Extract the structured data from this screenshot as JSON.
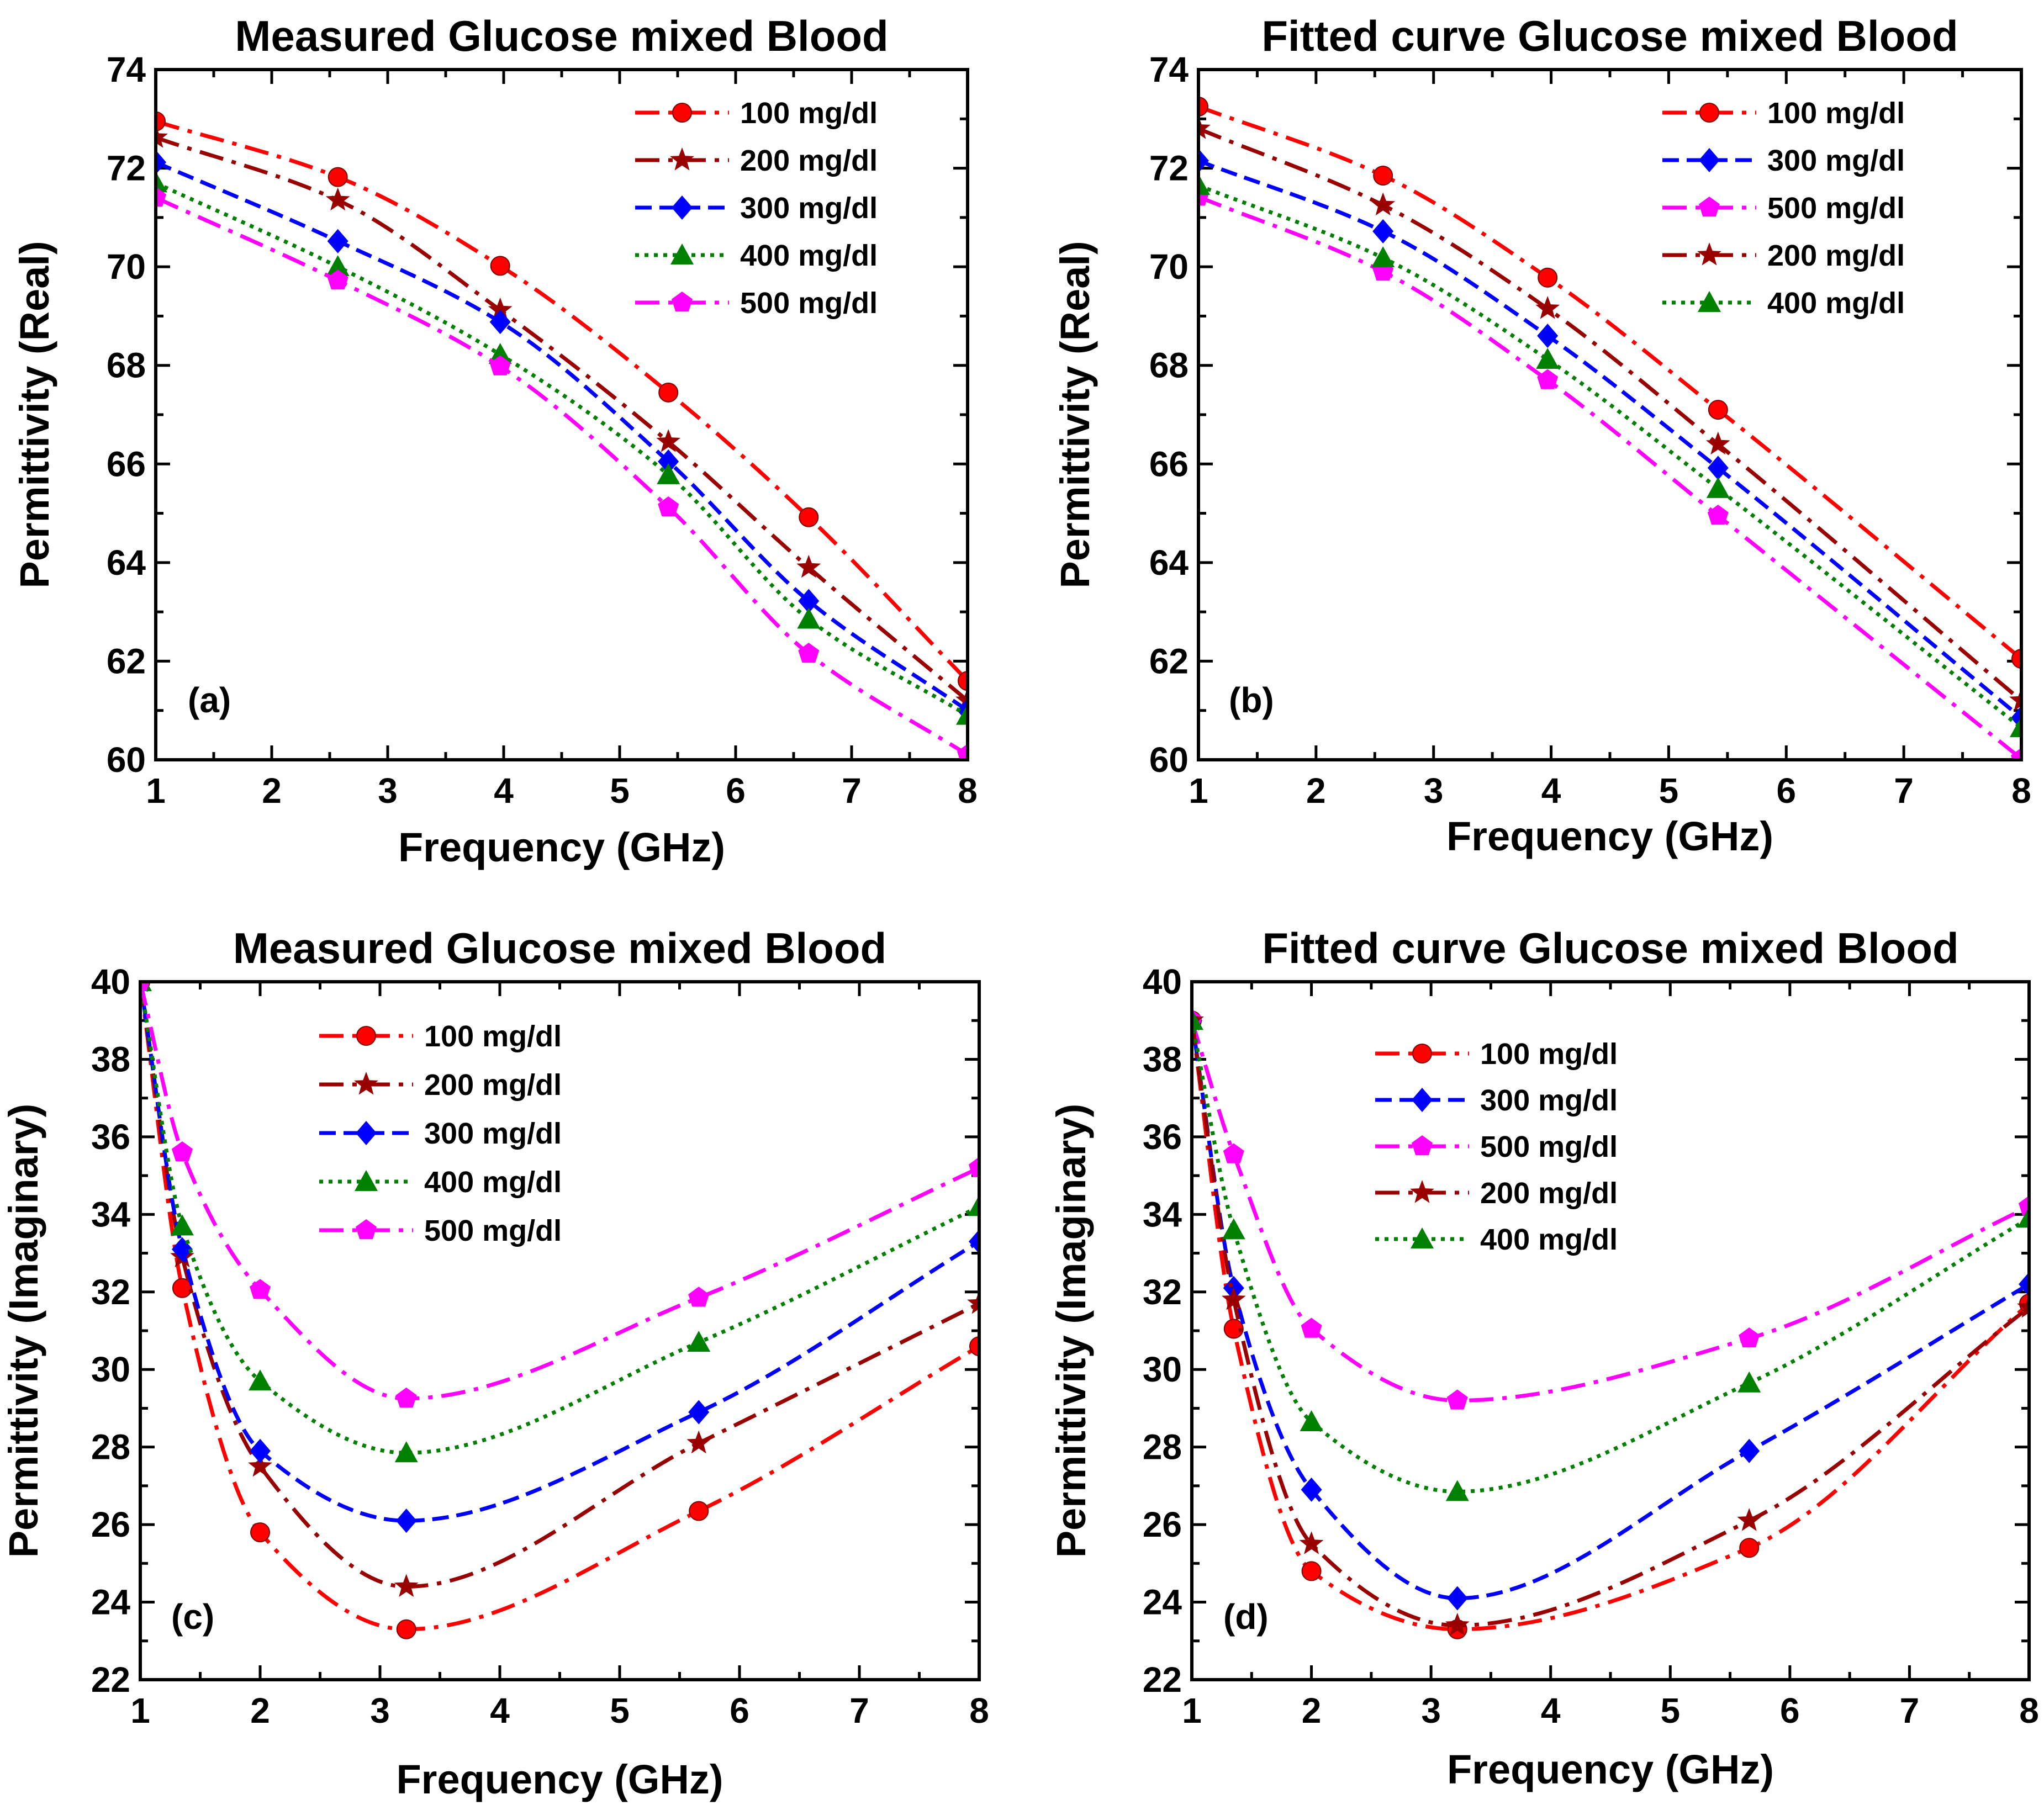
{
  "colors": {
    "100 mg/dl": "#ff0000",
    "200 mg/dl": "#990000",
    "300 mg/dl": "#0000ff",
    "400 mg/dl": "#008000",
    "500 mg/dl": "#ff00ff"
  },
  "chart_data": [
    {
      "type": "line",
      "tag": "(a)",
      "title": "Measured Glucose mixed Blood",
      "xlabel": "Frequency (GHz)",
      "ylabel": "Permittivity (Real)",
      "xlim": [
        1,
        8
      ],
      "ylim": [
        60,
        74
      ],
      "xticks": [
        1,
        2,
        3,
        4,
        5,
        6,
        7,
        8
      ],
      "yticks": [
        60,
        62,
        64,
        66,
        68,
        70,
        72,
        74
      ],
      "legend_position": "top-right",
      "grid": false,
      "series": [
        {
          "name": "100 mg/dl",
          "style": "dashdot",
          "marker": "circle",
          "x": [
            1.0,
            2.57,
            3.97,
            5.42,
            6.63,
            8.0
          ],
          "y": [
            72.95,
            71.82,
            70.02,
            67.45,
            64.92,
            61.6
          ]
        },
        {
          "name": "200 mg/dl",
          "style": "dashdot",
          "marker": "star",
          "x": [
            1.0,
            2.57,
            3.97,
            5.42,
            6.63,
            8.0
          ],
          "y": [
            72.62,
            71.35,
            69.12,
            66.45,
            63.9,
            61.2
          ]
        },
        {
          "name": "300 mg/dl",
          "style": "dash",
          "marker": "diamond",
          "x": [
            1.0,
            2.57,
            3.97,
            5.42,
            6.63,
            8.0
          ],
          "y": [
            72.12,
            70.52,
            68.88,
            66.05,
            63.22,
            61.0
          ]
        },
        {
          "name": "400 mg/dl",
          "style": "dot",
          "marker": "triangle",
          "x": [
            1.0,
            2.57,
            3.97,
            5.42,
            6.63,
            8.0
          ],
          "y": [
            71.7,
            70.0,
            68.22,
            65.78,
            62.85,
            60.9
          ]
        },
        {
          "name": "500 mg/dl",
          "style": "dashdot",
          "marker": "pentagon",
          "x": [
            1.0,
            2.57,
            3.97,
            5.42,
            6.63,
            8.0
          ],
          "y": [
            71.4,
            69.72,
            67.98,
            65.12,
            62.15,
            60.1
          ]
        }
      ]
    },
    {
      "type": "line",
      "tag": "(b)",
      "title": "Fitted curve Glucose mixed Blood",
      "xlabel": "Frequency (GHz)",
      "ylabel": "Permittivity (Real)",
      "xlim": [
        1,
        8
      ],
      "ylim": [
        60,
        74
      ],
      "xticks": [
        1,
        2,
        3,
        4,
        5,
        6,
        7,
        8
      ],
      "yticks": [
        60,
        62,
        64,
        66,
        68,
        70,
        72,
        74
      ],
      "legend_position": "top-right",
      "grid": false,
      "series": [
        {
          "name": "100 mg/dl",
          "style": "dashdot",
          "marker": "circle",
          "x": [
            1.0,
            2.57,
            3.97,
            5.42,
            8.0
          ],
          "y": [
            73.25,
            71.85,
            69.78,
            67.1,
            62.05
          ]
        },
        {
          "name": "300 mg/dl",
          "style": "dash",
          "marker": "diamond",
          "x": [
            1.0,
            2.57,
            3.97,
            5.42,
            8.0
          ],
          "y": [
            72.15,
            70.72,
            68.6,
            65.92,
            60.85
          ]
        },
        {
          "name": "500 mg/dl",
          "style": "dashdot",
          "marker": "pentagon",
          "x": [
            1.0,
            2.57,
            3.97,
            5.42,
            8.0
          ],
          "y": [
            71.42,
            69.9,
            67.7,
            64.95,
            60.02
          ]
        },
        {
          "name": "200 mg/dl",
          "style": "dashdot",
          "marker": "star",
          "x": [
            1.0,
            2.57,
            3.97,
            5.42,
            8.0
          ],
          "y": [
            72.8,
            71.25,
            69.15,
            66.4,
            61.2
          ]
        },
        {
          "name": "400 mg/dl",
          "style": "dot",
          "marker": "triangle",
          "x": [
            1.0,
            2.57,
            3.97,
            5.42,
            8.0
          ],
          "y": [
            71.65,
            70.18,
            68.12,
            65.5,
            60.65
          ]
        }
      ]
    },
    {
      "type": "line",
      "tag": "(c)",
      "title": "Measured Glucose mixed Blood",
      "xlabel": "Frequency (GHz)",
      "ylabel": "Permittivity (Imaginary)",
      "xlim": [
        1,
        8
      ],
      "ylim": [
        22,
        40
      ],
      "xticks": [
        1,
        2,
        3,
        4,
        5,
        6,
        7,
        8
      ],
      "yticks": [
        22,
        24,
        26,
        28,
        30,
        32,
        34,
        36,
        38,
        40
      ],
      "legend_position": "top-left",
      "grid": false,
      "series": [
        {
          "name": "100 mg/dl",
          "style": "dashdot",
          "marker": "circle",
          "x": [
            1.0,
            1.35,
            2.0,
            3.22,
            5.66,
            8.0
          ],
          "y": [
            40.0,
            32.1,
            25.8,
            23.3,
            26.35,
            30.6
          ]
        },
        {
          "name": "200 mg/dl",
          "style": "dashdot",
          "marker": "star",
          "x": [
            1.0,
            1.35,
            2.0,
            3.22,
            5.66,
            8.0
          ],
          "y": [
            40.0,
            32.9,
            27.5,
            24.4,
            28.1,
            31.7
          ]
        },
        {
          "name": "300 mg/dl",
          "style": "dash",
          "marker": "diamond",
          "x": [
            1.0,
            1.35,
            2.0,
            3.22,
            5.66,
            8.0
          ],
          "y": [
            40.0,
            33.1,
            27.9,
            26.1,
            28.9,
            33.3
          ]
        },
        {
          "name": "400 mg/dl",
          "style": "dot",
          "marker": "triangle",
          "x": [
            1.0,
            1.35,
            2.0,
            3.22,
            5.66,
            8.0
          ],
          "y": [
            40.0,
            33.7,
            29.7,
            27.85,
            30.7,
            34.2
          ]
        },
        {
          "name": "500 mg/dl",
          "style": "dashdot",
          "marker": "pentagon",
          "x": [
            1.0,
            1.35,
            2.0,
            3.22,
            5.66,
            8.0
          ],
          "y": [
            40.0,
            35.6,
            32.05,
            29.25,
            31.85,
            35.2
          ]
        }
      ]
    },
    {
      "type": "line",
      "tag": "(d)",
      "title": "Fitted curve Glucose mixed Blood",
      "xlabel": "Frequency (GHz)",
      "ylabel": "Permittivity (Imaginary)",
      "xlim": [
        1,
        8
      ],
      "ylim": [
        22,
        40
      ],
      "xticks": [
        1,
        2,
        3,
        4,
        5,
        6,
        7,
        8
      ],
      "yticks": [
        22,
        24,
        26,
        28,
        30,
        32,
        34,
        36,
        38,
        40
      ],
      "legend_position": "top-left",
      "grid": false,
      "series": [
        {
          "name": "100 mg/dl",
          "style": "dashdot",
          "marker": "circle",
          "x": [
            1.0,
            1.35,
            2.0,
            3.22,
            5.66,
            8.0
          ],
          "y": [
            39.0,
            31.05,
            24.8,
            23.3,
            25.4,
            31.7
          ]
        },
        {
          "name": "300 mg/dl",
          "style": "dash",
          "marker": "diamond",
          "x": [
            1.0,
            1.35,
            2.0,
            3.22,
            5.66,
            8.0
          ],
          "y": [
            39.0,
            32.1,
            26.9,
            24.1,
            27.9,
            32.2
          ]
        },
        {
          "name": "500 mg/dl",
          "style": "dashdot",
          "marker": "pentagon",
          "x": [
            1.0,
            1.35,
            2.0,
            3.22,
            5.66,
            8.0
          ],
          "y": [
            39.0,
            35.55,
            31.05,
            29.2,
            30.8,
            34.2
          ]
        },
        {
          "name": "200 mg/dl",
          "style": "dashdot",
          "marker": "star",
          "x": [
            1.0,
            1.35,
            2.0,
            3.22,
            5.66,
            8.0
          ],
          "y": [
            39.0,
            31.8,
            25.5,
            23.4,
            26.1,
            31.6
          ]
        },
        {
          "name": "400 mg/dl",
          "style": "dot",
          "marker": "triangle",
          "x": [
            1.0,
            1.35,
            2.0,
            3.22,
            5.66,
            8.0
          ],
          "y": [
            39.0,
            33.6,
            28.65,
            26.85,
            29.65,
            33.9
          ]
        }
      ]
    }
  ]
}
